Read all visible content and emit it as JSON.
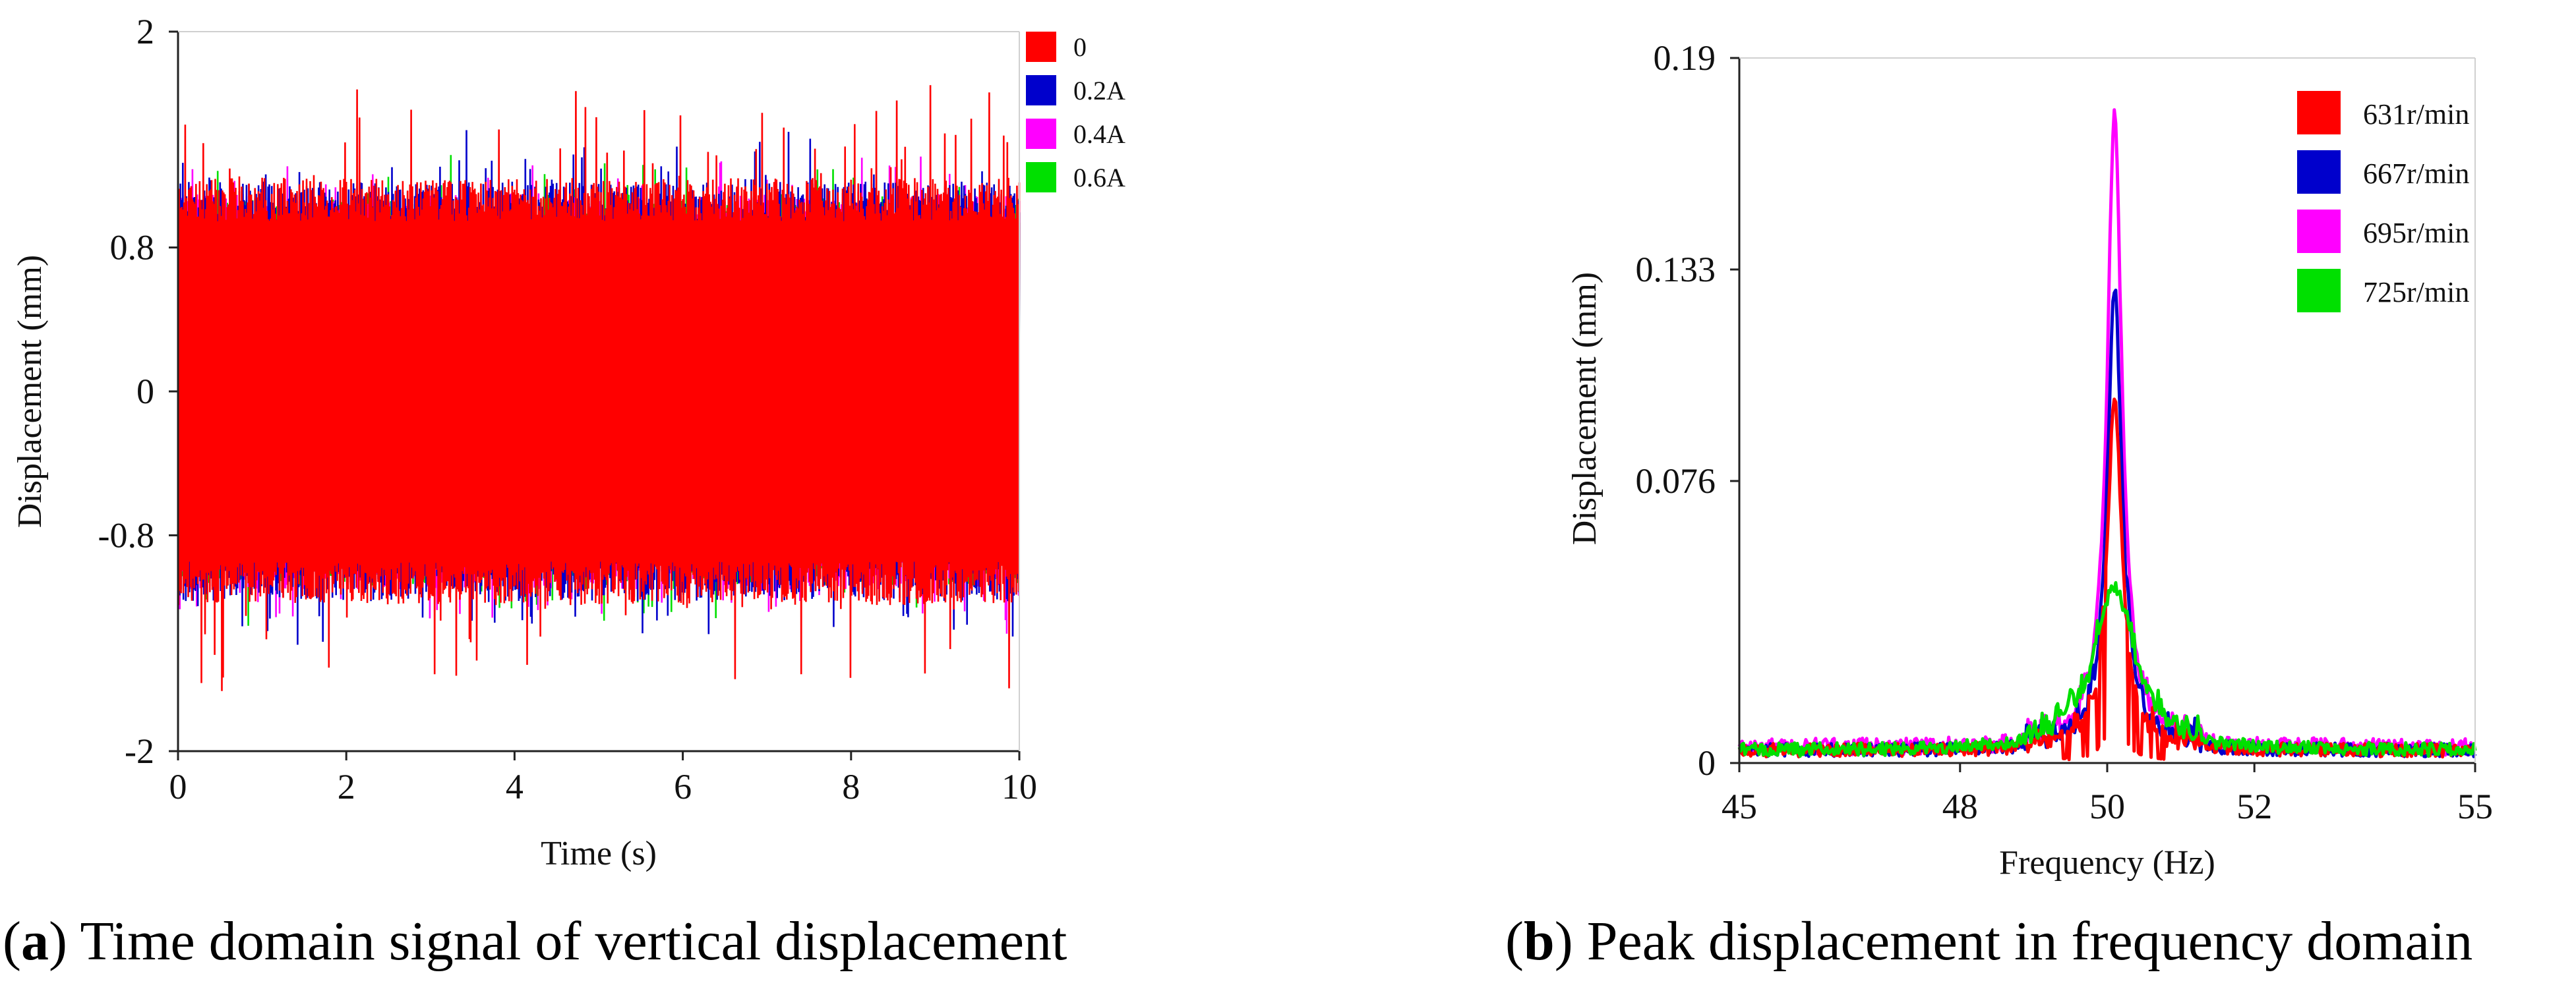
{
  "captions": {
    "a": {
      "letter": "a",
      "text": "Time domain signal of vertical displacement"
    },
    "b": {
      "letter": "b",
      "text": "Peak displacement in frequency domain"
    }
  },
  "chart_data": [
    {
      "type": "line",
      "title": "",
      "xlabel": "Time (s)",
      "ylabel": "Displacement (mm)",
      "xlim": [
        0,
        10
      ],
      "ylim": [
        -2,
        2
      ],
      "x_ticks": [
        0,
        2,
        4,
        6,
        8,
        10
      ],
      "x_tick_labels": [
        "0",
        "2",
        "4",
        "6",
        "8",
        "10"
      ],
      "y_ticks": [
        2,
        0.8,
        0,
        -0.8,
        -2
      ],
      "y_tick_labels": [
        "2",
        "0.8",
        "0",
        "-0.8",
        "-2"
      ],
      "grid": false,
      "legend_position": "top-right",
      "series": [
        {
          "name": "0.6A",
          "color": "#00e000",
          "amplitude": 1.0,
          "peak": 1.25
        },
        {
          "name": "0.4A",
          "color": "#ff00ff",
          "amplitude": 1.02,
          "peak": 1.3
        },
        {
          "name": "0.2A",
          "color": "#0000cc",
          "amplitude": 1.08,
          "peak": 1.4
        },
        {
          "name": "0",
          "color": "#ff0000",
          "amplitude": 1.1,
          "peak": 1.65
        }
      ],
      "legend_order": [
        "0",
        "0.2A",
        "0.4A",
        "0.6A"
      ]
    },
    {
      "type": "line",
      "title": "",
      "xlabel": "Frequency (Hz)",
      "ylabel": "Displacement (mm)",
      "xlim": [
        45,
        55
      ],
      "ylim": [
        0,
        0.19
      ],
      "x_ticks": [
        45,
        48,
        50,
        52,
        55
      ],
      "x_tick_labels": [
        "45",
        "48",
        "50",
        "52",
        "55"
      ],
      "y_ticks": [
        0.19,
        0.133,
        0.076,
        0
      ],
      "y_tick_labels": [
        "0.19",
        "0.133",
        "0.076",
        "0"
      ],
      "grid": false,
      "legend_position": "top-right",
      "peak_frequency": 50.1,
      "series": [
        {
          "name": "631r/min",
          "color": "#ff0000",
          "peak": 0.095,
          "base": 0.004
        },
        {
          "name": "667r/min",
          "color": "#0000cc",
          "peak": 0.125,
          "base": 0.004
        },
        {
          "name": "695r/min",
          "color": "#ff00ff",
          "peak": 0.172,
          "base": 0.005
        },
        {
          "name": "725r/min",
          "color": "#00e000",
          "peak": 0.044,
          "base": 0.004
        }
      ],
      "legend_order": [
        "631r/min",
        "667r/min",
        "695r/min",
        "725r/min"
      ]
    }
  ]
}
